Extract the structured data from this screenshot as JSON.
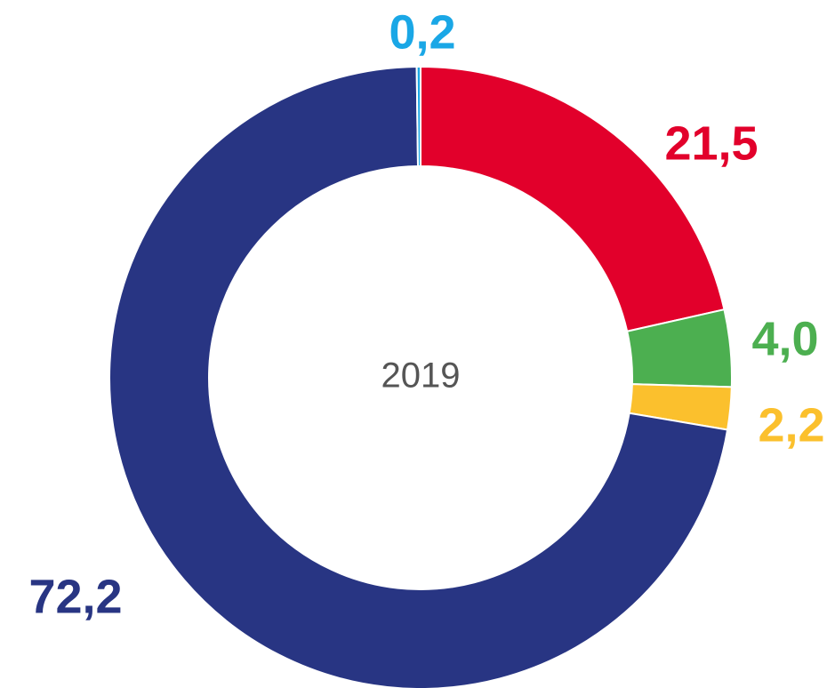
{
  "chart_data": {
    "type": "pie",
    "center_label": "2019",
    "values": [
      21.5,
      4.0,
      2.2,
      72.2,
      0.2
    ],
    "value_labels": [
      "21,5",
      "4,0",
      "2,2",
      "72,2",
      "0,2"
    ],
    "colors": [
      "#e2002b",
      "#4caf50",
      "#fbc02d",
      "#283583",
      "#1aa7e6"
    ]
  }
}
